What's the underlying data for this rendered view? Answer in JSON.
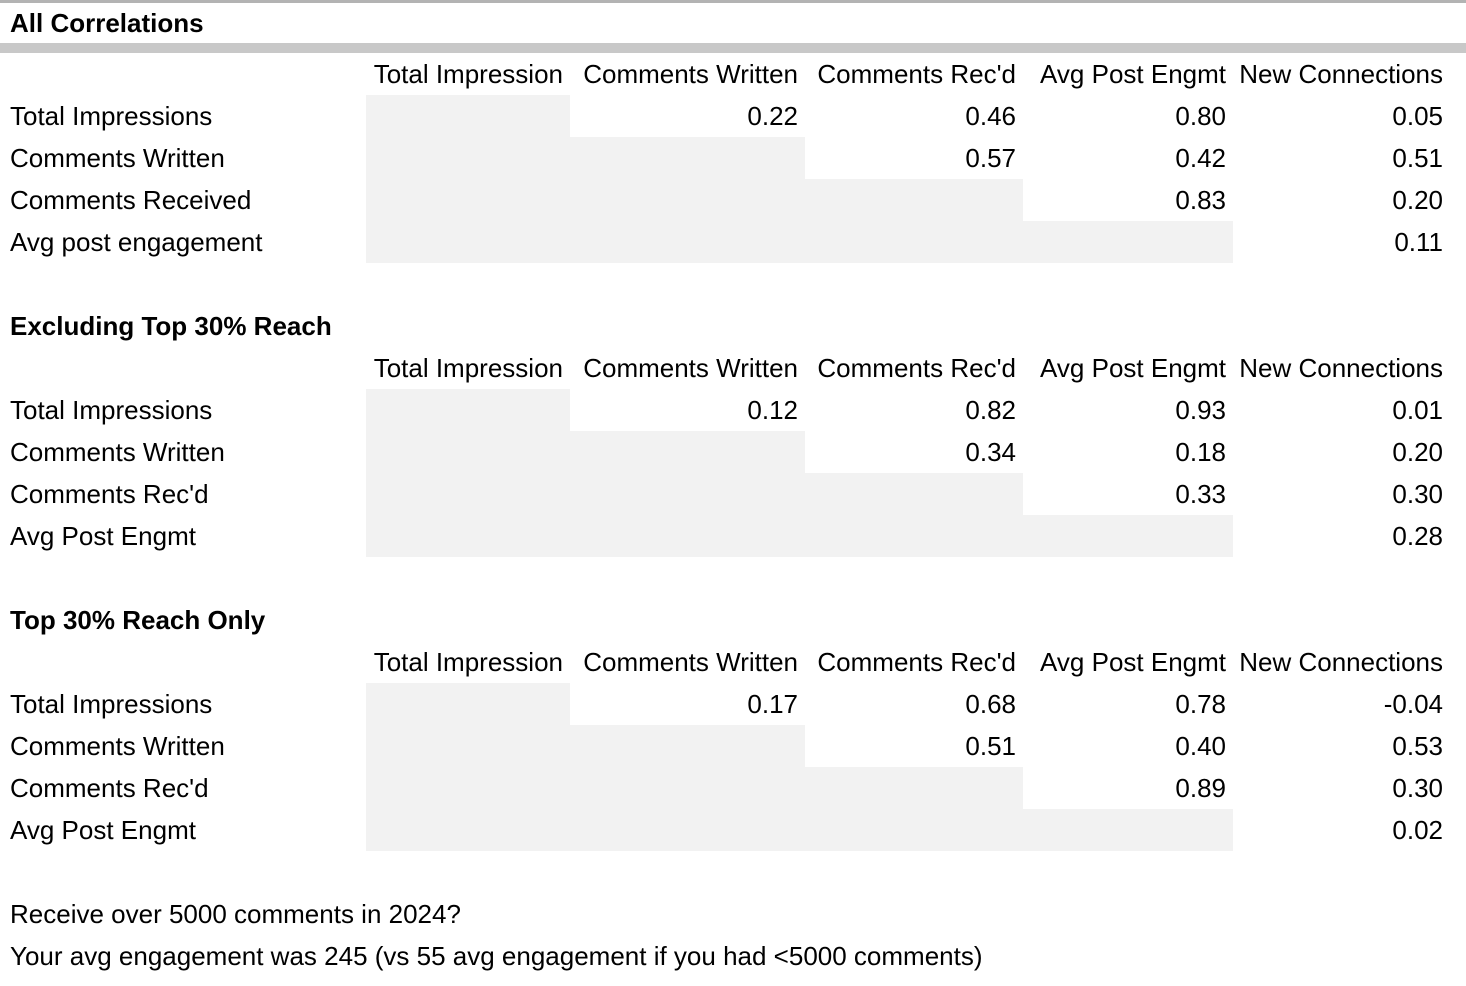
{
  "colors": {
    "divider_bar": "#c8c8c8",
    "top_border": "#b3b3b3",
    "shaded_cell": "#f2f2f2",
    "background": "#ffffff",
    "text": "#000000"
  },
  "columns": [
    "Total Impression",
    "Comments Written",
    "Comments Rec'd",
    "Avg Post Engmt",
    "New Connections"
  ],
  "sections": [
    {
      "title": "All Correlations",
      "rows": [
        {
          "label": "Total Impressions",
          "values": [
            "",
            "0.22",
            "0.46",
            "0.80",
            "0.05"
          ]
        },
        {
          "label": "Comments Written",
          "values": [
            "",
            "",
            "0.57",
            "0.42",
            "0.51"
          ]
        },
        {
          "label": "Comments Received",
          "values": [
            "",
            "",
            "",
            "0.83",
            "0.20"
          ]
        },
        {
          "label": "Avg post engagement",
          "values": [
            "",
            "",
            "",
            "",
            "0.11"
          ]
        }
      ]
    },
    {
      "title": "Excluding Top 30% Reach",
      "rows": [
        {
          "label": "Total Impressions",
          "values": [
            "",
            "0.12",
            "0.82",
            "0.93",
            "0.01"
          ]
        },
        {
          "label": "Comments Written",
          "values": [
            "",
            "",
            "0.34",
            "0.18",
            "0.20"
          ]
        },
        {
          "label": "Comments Rec'd",
          "values": [
            "",
            "",
            "",
            "0.33",
            "0.30"
          ]
        },
        {
          "label": "Avg Post Engmt",
          "values": [
            "",
            "",
            "",
            "",
            "0.28"
          ]
        }
      ]
    },
    {
      "title": "Top 30% Reach Only",
      "rows": [
        {
          "label": "Total Impressions",
          "values": [
            "",
            "0.17",
            "0.68",
            "0.78",
            "-0.04"
          ]
        },
        {
          "label": "Comments Written",
          "values": [
            "",
            "",
            "0.51",
            "0.40",
            "0.53"
          ]
        },
        {
          "label": "Comments Rec'd",
          "values": [
            "",
            "",
            "",
            "0.89",
            "0.30"
          ]
        },
        {
          "label": "Avg Post Engmt",
          "values": [
            "",
            "",
            "",
            "",
            "0.02"
          ]
        }
      ]
    }
  ],
  "footer": {
    "line1": "Receive over 5000 comments in 2024?",
    "line2": "Your avg engagement was 245 (vs 55 avg engagement if you had <5000 comments)"
  }
}
